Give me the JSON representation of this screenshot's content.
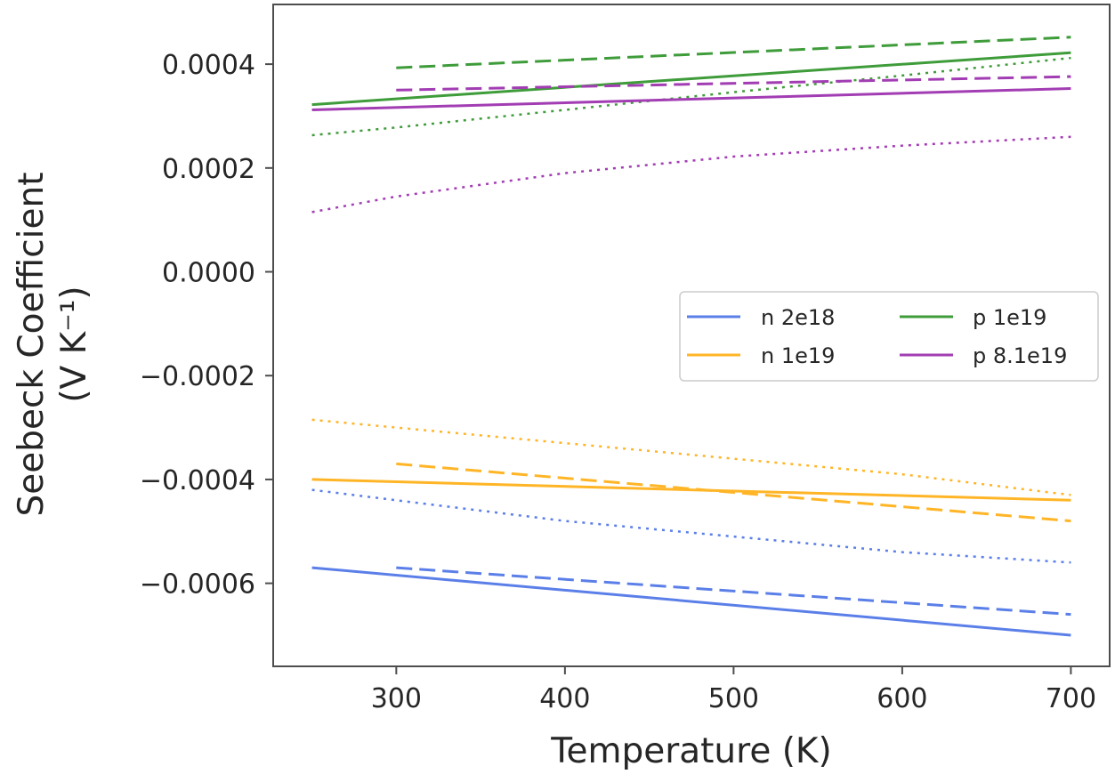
{
  "chart_data": {
    "type": "line",
    "xlabel": "Temperature (K)",
    "ylabel_line1": "Seebeck Coefficient",
    "ylabel_line2": "(V K⁻¹)",
    "xlim": [
      227,
      723
    ],
    "ylim": [
      -0.00076,
      0.000515
    ],
    "xticks": [
      300,
      400,
      500,
      600,
      700
    ],
    "xtick_labels": [
      "300",
      "400",
      "500",
      "600",
      "700"
    ],
    "yticks": [
      0.0004,
      0.0002,
      0.0,
      -0.0002,
      -0.0004,
      -0.0006
    ],
    "ytick_labels": [
      "0.0004",
      "0.0002",
      "0.0000",
      "−0.0002",
      "−0.0004",
      "−0.0006"
    ],
    "grid": false,
    "legend": {
      "placement": "center-right",
      "columns": 2,
      "entries": [
        {
          "label": "n 2e18",
          "color": "#5b7fe8"
        },
        {
          "label": "n 1e19",
          "color": "#ffb526"
        },
        {
          "label": "p 1e19",
          "color": "#3f9c3a"
        },
        {
          "label": "p 8.1e19",
          "color": "#a23db3"
        }
      ]
    },
    "series": [
      {
        "group": "n 2e18",
        "style": "solid",
        "color": "#5b7fe8",
        "x": [
          250,
          700
        ],
        "y": [
          -0.00057,
          -0.0007
        ]
      },
      {
        "group": "n 2e18",
        "style": "dashed",
        "color": "#5b7fe8",
        "x": [
          300,
          700
        ],
        "y": [
          -0.00057,
          -0.00066
        ]
      },
      {
        "group": "n 2e18",
        "style": "dotted",
        "color": "#5b7fe8",
        "x": [
          250,
          300,
          400,
          500,
          600,
          700
        ],
        "y": [
          -0.00042,
          -0.00044,
          -0.00048,
          -0.00051,
          -0.00054,
          -0.00056
        ]
      },
      {
        "group": "n 1e19",
        "style": "solid",
        "color": "#ffb526",
        "x": [
          250,
          700
        ],
        "y": [
          -0.0004,
          -0.00044
        ]
      },
      {
        "group": "n 1e19",
        "style": "dashed",
        "color": "#ffb526",
        "x": [
          300,
          700
        ],
        "y": [
          -0.00037,
          -0.00048
        ]
      },
      {
        "group": "n 1e19",
        "style": "dotted",
        "color": "#ffb526",
        "x": [
          250,
          300,
          400,
          500,
          600,
          700
        ],
        "y": [
          -0.000285,
          -0.0003,
          -0.00033,
          -0.00036,
          -0.00039,
          -0.00043
        ]
      },
      {
        "group": "p 1e19",
        "style": "solid",
        "color": "#3f9c3a",
        "x": [
          250,
          700
        ],
        "y": [
          0.000322,
          0.000422
        ]
      },
      {
        "group": "p 1e19",
        "style": "dashed",
        "color": "#3f9c3a",
        "x": [
          300,
          700
        ],
        "y": [
          0.000393,
          0.000452
        ]
      },
      {
        "group": "p 1e19",
        "style": "dotted",
        "color": "#3f9c3a",
        "x": [
          250,
          300,
          400,
          500,
          600,
          700
        ],
        "y": [
          0.000263,
          0.000278,
          0.000312,
          0.000346,
          0.000378,
          0.000412
        ]
      },
      {
        "group": "p 8.1e19",
        "style": "solid",
        "color": "#a23db3",
        "x": [
          250,
          700
        ],
        "y": [
          0.000312,
          0.000353
        ]
      },
      {
        "group": "p 8.1e19",
        "style": "dashed",
        "color": "#a23db3",
        "x": [
          300,
          700
        ],
        "y": [
          0.00035,
          0.000376
        ]
      },
      {
        "group": "p 8.1e19",
        "style": "dotted",
        "color": "#a23db3",
        "x": [
          250,
          300,
          400,
          500,
          600,
          700
        ],
        "y": [
          0.000115,
          0.000145,
          0.00019,
          0.000222,
          0.000243,
          0.00026
        ]
      }
    ]
  }
}
